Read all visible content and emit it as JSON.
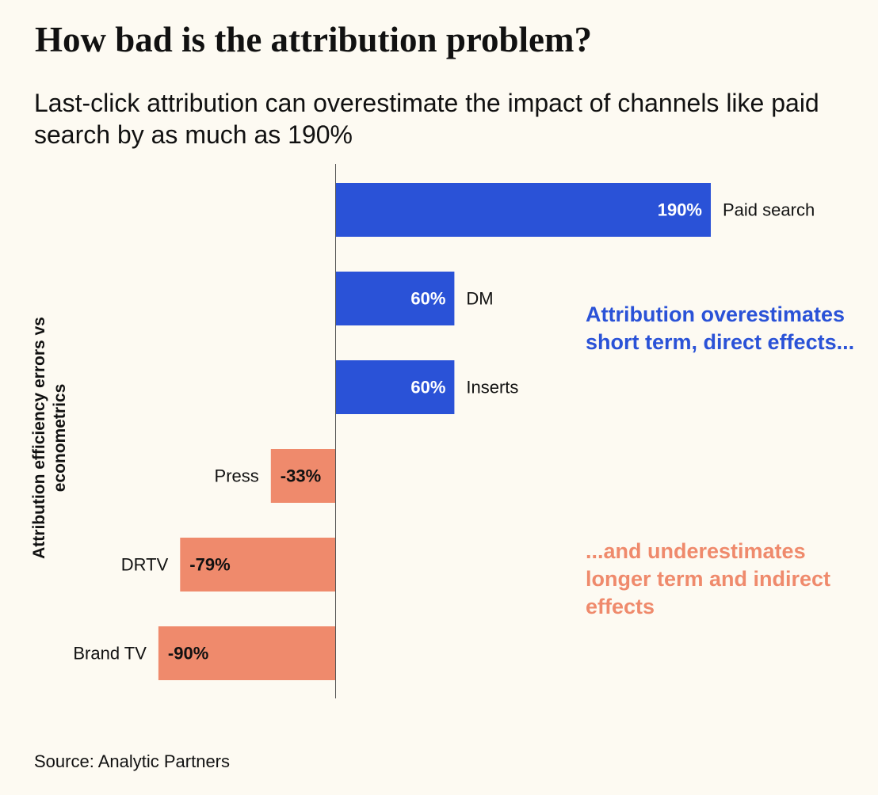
{
  "chart_data": {
    "type": "bar",
    "orientation": "horizontal",
    "title": "How bad is the attribution problem?",
    "subtitle": "Last-click attribution can overestimate the impact of channels like paid search by as much as 190%",
    "ylabel": "Attribution efficiency errors vs econometrics",
    "categories": [
      "Paid search",
      "DM",
      "Inserts",
      "Press",
      "DRTV",
      "Brand TV"
    ],
    "values": [
      190,
      60,
      60,
      -33,
      -79,
      -90
    ],
    "value_labels": [
      "190%",
      "60%",
      "60%",
      "-33%",
      "-79%",
      "-90%"
    ],
    "xlim": [
      -90,
      190
    ],
    "grid": false,
    "annotations": [
      "Attribution overestimates short term, direct effects...",
      "...and underestimates longer term and indirect effects"
    ],
    "source": "Source: Analytic Partners"
  },
  "colors": {
    "positive": "#2a52d7",
    "negative": "#ef8a6c",
    "background": "#fdfaf2",
    "axis": "#555555",
    "text": "#111111"
  }
}
